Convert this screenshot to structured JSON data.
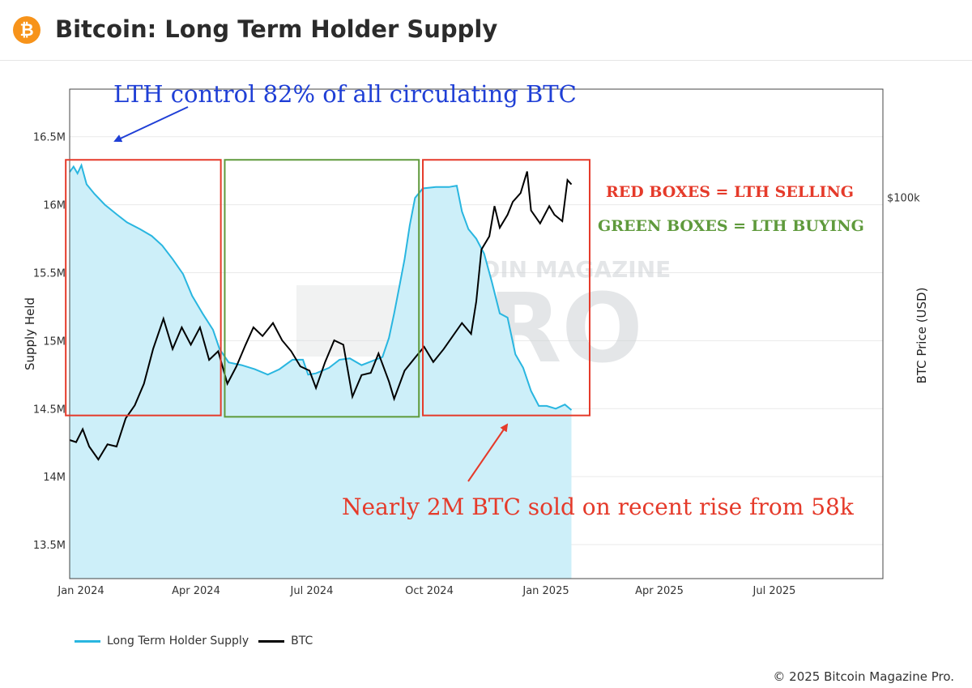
{
  "header": {
    "title": "Bitcoin: Long Term Holder Supply",
    "logo_glyph": "₿",
    "logo_color": "#f7931a"
  },
  "legend": {
    "lth_label": "Long Term Holder Supply",
    "btc_label": "BTC"
  },
  "copyright": "© 2025 Bitcoin Magazine Pro.",
  "annotations": {
    "top_note": "LTH control 82% of all circulating BTC",
    "red_boxes": "RED BOXES = LTH SELLING",
    "green_boxes": "GREEN BOXES = LTH BUYING",
    "bottom_note": "Nearly 2M BTC sold on recent rise from 58k"
  },
  "watermark": {
    "line1": "BITCOIN MAGAZINE",
    "line2": "PRO"
  },
  "chart_data": {
    "type": "line",
    "title": "Bitcoin: Long Term Holder Supply",
    "ylabel": "Supply Held",
    "y2label": "BTC Price (USD)",
    "x_ticks": [
      "Jan 2024",
      "Apr 2024",
      "Jul 2024",
      "Oct 2024",
      "Jan 2025",
      "Apr 2025",
      "Jul 2025"
    ],
    "x_range": [
      "2024-01-01",
      "2025-09-16"
    ],
    "y_ticks": [
      {
        "v": 13500000,
        "label": "13.5M"
      },
      {
        "v": 14000000,
        "label": "14M"
      },
      {
        "v": 14500000,
        "label": "14.5M"
      },
      {
        "v": 15000000,
        "label": "15M"
      },
      {
        "v": 15500000,
        "label": "15.5M"
      },
      {
        "v": 16000000,
        "label": "16M"
      },
      {
        "v": 16500000,
        "label": "16.5M"
      }
    ],
    "ylim": [
      13250000,
      16850000
    ],
    "y2_ticks": [
      {
        "v": 100000,
        "label": "$100k"
      }
    ],
    "y2lim": [
      12000,
      125000
    ],
    "grid": true,
    "legend_position": "bottom-left",
    "colors": {
      "lth": "#29b6e0",
      "lth_fill": "#cdeff9",
      "btc": "#000000",
      "red_box": "#e53a2a",
      "green_box": "#5f9a3c",
      "blue_note": "#1f3fd6"
    },
    "series": [
      {
        "name": "Long Term Holder Supply",
        "axis": "left",
        "points": [
          [
            "2024-01-01",
            16240000
          ],
          [
            "2024-01-04",
            16280000
          ],
          [
            "2024-01-07",
            16230000
          ],
          [
            "2024-01-10",
            16290000
          ],
          [
            "2024-01-14",
            16150000
          ],
          [
            "2024-01-20",
            16080000
          ],
          [
            "2024-01-28",
            16000000
          ],
          [
            "2024-02-06",
            15930000
          ],
          [
            "2024-02-14",
            15870000
          ],
          [
            "2024-02-24",
            15820000
          ],
          [
            "2024-03-04",
            15770000
          ],
          [
            "2024-03-12",
            15700000
          ],
          [
            "2024-03-20",
            15600000
          ],
          [
            "2024-03-28",
            15490000
          ],
          [
            "2024-04-04",
            15330000
          ],
          [
            "2024-04-12",
            15200000
          ],
          [
            "2024-04-20",
            15080000
          ],
          [
            "2024-04-25",
            14940000
          ],
          [
            "2024-05-02",
            14840000
          ],
          [
            "2024-05-12",
            14820000
          ],
          [
            "2024-05-22",
            14790000
          ],
          [
            "2024-06-01",
            14750000
          ],
          [
            "2024-06-10",
            14790000
          ],
          [
            "2024-06-20",
            14860000
          ],
          [
            "2024-06-28",
            14860000
          ],
          [
            "2024-07-02",
            14750000
          ],
          [
            "2024-07-08",
            14760000
          ],
          [
            "2024-07-18",
            14800000
          ],
          [
            "2024-07-26",
            14860000
          ],
          [
            "2024-08-03",
            14870000
          ],
          [
            "2024-08-12",
            14820000
          ],
          [
            "2024-08-20",
            14850000
          ],
          [
            "2024-08-28",
            14880000
          ],
          [
            "2024-09-02",
            15020000
          ],
          [
            "2024-09-06",
            15200000
          ],
          [
            "2024-09-10",
            15400000
          ],
          [
            "2024-09-14",
            15600000
          ],
          [
            "2024-09-18",
            15850000
          ],
          [
            "2024-09-22",
            16050000
          ],
          [
            "2024-09-28",
            16120000
          ],
          [
            "2024-10-08",
            16130000
          ],
          [
            "2024-10-18",
            16130000
          ],
          [
            "2024-10-24",
            16140000
          ],
          [
            "2024-10-28",
            15950000
          ],
          [
            "2024-11-02",
            15820000
          ],
          [
            "2024-11-08",
            15750000
          ],
          [
            "2024-11-14",
            15640000
          ],
          [
            "2024-11-20",
            15430000
          ],
          [
            "2024-11-26",
            15200000
          ],
          [
            "2024-12-02",
            15170000
          ],
          [
            "2024-12-08",
            14900000
          ],
          [
            "2024-12-14",
            14800000
          ],
          [
            "2024-12-20",
            14630000
          ],
          [
            "2024-12-26",
            14520000
          ],
          [
            "2025-01-01",
            14520000
          ],
          [
            "2025-01-08",
            14500000
          ],
          [
            "2025-01-15",
            14530000
          ],
          [
            "2025-01-20",
            14490000
          ]
        ]
      },
      {
        "name": "BTC",
        "axis": "right",
        "points": [
          [
            "2024-01-01",
            44000
          ],
          [
            "2024-01-06",
            43500
          ],
          [
            "2024-01-11",
            46500
          ],
          [
            "2024-01-16",
            42500
          ],
          [
            "2024-01-23",
            39500
          ],
          [
            "2024-01-30",
            43000
          ],
          [
            "2024-02-06",
            42500
          ],
          [
            "2024-02-13",
            49000
          ],
          [
            "2024-02-20",
            52000
          ],
          [
            "2024-02-27",
            57000
          ],
          [
            "2024-03-05",
            65000
          ],
          [
            "2024-03-13",
            72000
          ],
          [
            "2024-03-20",
            65000
          ],
          [
            "2024-03-27",
            70000
          ],
          [
            "2024-04-03",
            66000
          ],
          [
            "2024-04-10",
            70000
          ],
          [
            "2024-04-17",
            62500
          ],
          [
            "2024-04-24",
            64500
          ],
          [
            "2024-05-01",
            57000
          ],
          [
            "2024-05-08",
            61000
          ],
          [
            "2024-05-15",
            66000
          ],
          [
            "2024-05-21",
            70000
          ],
          [
            "2024-05-28",
            68000
          ],
          [
            "2024-06-05",
            71000
          ],
          [
            "2024-06-12",
            67000
          ],
          [
            "2024-06-19",
            64500
          ],
          [
            "2024-06-26",
            61000
          ],
          [
            "2024-07-03",
            60000
          ],
          [
            "2024-07-08",
            56000
          ],
          [
            "2024-07-15",
            62000
          ],
          [
            "2024-07-22",
            67000
          ],
          [
            "2024-07-29",
            66000
          ],
          [
            "2024-08-05",
            54000
          ],
          [
            "2024-08-12",
            59000
          ],
          [
            "2024-08-19",
            59500
          ],
          [
            "2024-08-25",
            64000
          ],
          [
            "2024-09-02",
            57500
          ],
          [
            "2024-09-06",
            53500
          ],
          [
            "2024-09-14",
            60000
          ],
          [
            "2024-09-22",
            63000
          ],
          [
            "2024-09-29",
            65500
          ],
          [
            "2024-10-06",
            62000
          ],
          [
            "2024-10-14",
            65000
          ],
          [
            "2024-10-21",
            68000
          ],
          [
            "2024-10-28",
            71000
          ],
          [
            "2024-11-04",
            68500
          ],
          [
            "2024-11-08",
            76000
          ],
          [
            "2024-11-12",
            88000
          ],
          [
            "2024-11-18",
            91000
          ],
          [
            "2024-11-22",
            98000
          ],
          [
            "2024-11-26",
            93000
          ],
          [
            "2024-12-02",
            96000
          ],
          [
            "2024-12-06",
            99000
          ],
          [
            "2024-12-12",
            101000
          ],
          [
            "2024-12-17",
            106000
          ],
          [
            "2024-12-20",
            97000
          ],
          [
            "2024-12-27",
            94000
          ],
          [
            "2025-01-03",
            98000
          ],
          [
            "2025-01-07",
            96000
          ],
          [
            "2025-01-13",
            94500
          ],
          [
            "2025-01-17",
            104000
          ],
          [
            "2025-01-20",
            103000
          ]
        ]
      }
    ],
    "boxes": [
      {
        "color": "red",
        "x0": "2023-12-29",
        "x1": "2024-04-26",
        "y0": 14450000,
        "y1": 16330000
      },
      {
        "color": "green",
        "x0": "2024-04-29",
        "x1": "2024-09-25",
        "y0": 14440000,
        "y1": 16330000
      },
      {
        "color": "red",
        "x0": "2024-09-28",
        "x1": "2025-02-03",
        "y0": 14450000,
        "y1": 16330000
      }
    ]
  }
}
